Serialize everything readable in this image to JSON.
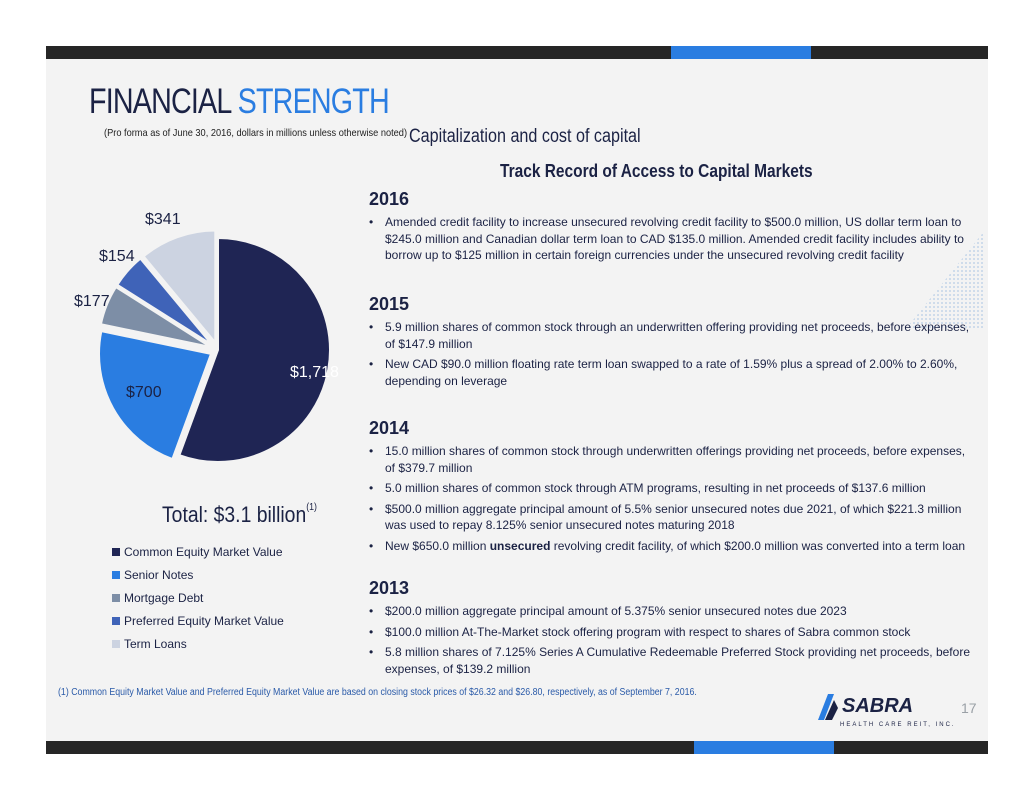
{
  "header": {
    "title_main": "FINANCIAL",
    "title_accent": "STRENGTH",
    "subtitle": "(Pro forma as of June 30, 2016, dollars in millions unless otherwise noted)"
  },
  "section_title": "Capitalization and cost of capital",
  "track_title": "Track Record of Access to Capital Markets",
  "chart_data": {
    "type": "pie",
    "values": [
      1718,
      700,
      177,
      154,
      341
    ],
    "labels": [
      "$1,718",
      "$700",
      "$177",
      "$154",
      "$341"
    ],
    "categories": [
      "Common Equity Market Value",
      "Senior Notes",
      "Mortgage Debt",
      "Preferred Equity Market Value",
      "Term Loans"
    ],
    "colors": [
      "#1f2554",
      "#2a7de1",
      "#7d8ea6",
      "#3f63b8",
      "#ccd3e1"
    ],
    "total_label": "Total: $3.1 billion",
    "total_note": "(1)"
  },
  "timeline": [
    {
      "year": "2016",
      "bullets": [
        "Amended credit facility to increase unsecured revolving credit facility to $500.0 million, US dollar term loan to $245.0 million and Canadian dollar term loan to CAD $135.0 million. Amended credit facility includes ability to borrow up to $125 million in certain foreign currencies under the unsecured revolving credit facility"
      ]
    },
    {
      "year": "2015",
      "bullets": [
        "5.9 million shares of common stock through an underwritten offering providing net proceeds, before expenses, of $147.9 million",
        "New CAD $90.0 million floating rate term loan swapped to a rate of 1.59% plus a spread of 2.00% to 2.60%, depending on leverage"
      ]
    },
    {
      "year": "2014",
      "bullets": [
        "15.0 million shares of common stock through underwritten offerings providing net proceeds, before expenses, of $379.7 million",
        "5.0 million shares of common stock through ATM programs, resulting in net proceeds of $137.6 million",
        "$500.0 million aggregate principal amount of 5.5% senior unsecured notes due 2021, of which $221.3 million was used to repay 8.125% senior unsecured notes maturing 2018"
      ],
      "last_pre": "New $650.0 million ",
      "last_bold": "unsecured",
      "last_post": " revolving credit facility, of which $200.0 million was converted into a term loan"
    },
    {
      "year": "2013",
      "bullets": [
        "$200.0 million aggregate principal amount of 5.375% senior unsecured notes due 2023",
        "$100.0 million At-The-Market stock offering program with respect to shares of Sabra common stock",
        "5.8 million shares of 7.125% Series A Cumulative Redeemable Preferred Stock providing net proceeds, before expenses, of $139.2 million"
      ]
    }
  ],
  "footnote": "(1)     Common Equity Market Value and Preferred Equity Market Value are based on closing stock prices of $26.32 and $26.80, respectively, as of September 7, 2016.",
  "page_number": "17",
  "logo": {
    "name": "SABRA",
    "tagline": "HEALTH CARE REIT, INC."
  }
}
